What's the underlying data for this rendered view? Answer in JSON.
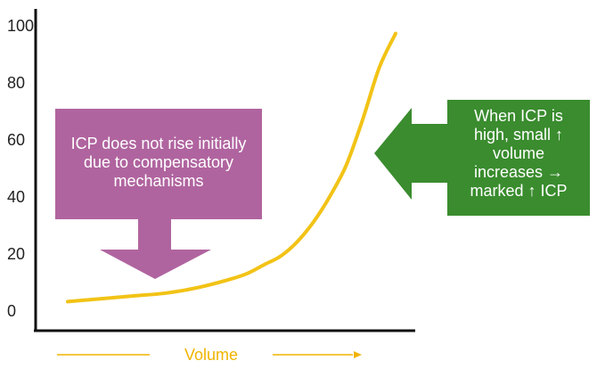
{
  "chart_data": {
    "type": "line",
    "title": "",
    "xlabel": "Volume",
    "ylabel": "",
    "ylim": [
      0,
      100
    ],
    "yticks": [
      0,
      20,
      40,
      60,
      80,
      100
    ],
    "grid": false,
    "series": [
      {
        "x": [
          0,
          10,
          20,
          30,
          40,
          50,
          55,
          60,
          65,
          70,
          75,
          80,
          85,
          90,
          95,
          100
        ],
        "values": [
          3,
          4,
          5,
          6,
          8,
          11,
          13,
          16,
          19,
          24,
          31,
          40,
          51,
          67,
          85,
          97
        ]
      }
    ],
    "annotations": [
      {
        "name": "compensatory",
        "text": "ICP does not rise initially due to compensatory mechanisms"
      },
      {
        "name": "high-icp",
        "text": "When ICP is high, small ↑ volume increases → marked ↑ ICP"
      }
    ]
  },
  "colors": {
    "curve": "#f2c316",
    "axis": "#111111",
    "pink": "#b0649f",
    "green": "#3a8c2e",
    "xlabel": "#f0b400"
  }
}
